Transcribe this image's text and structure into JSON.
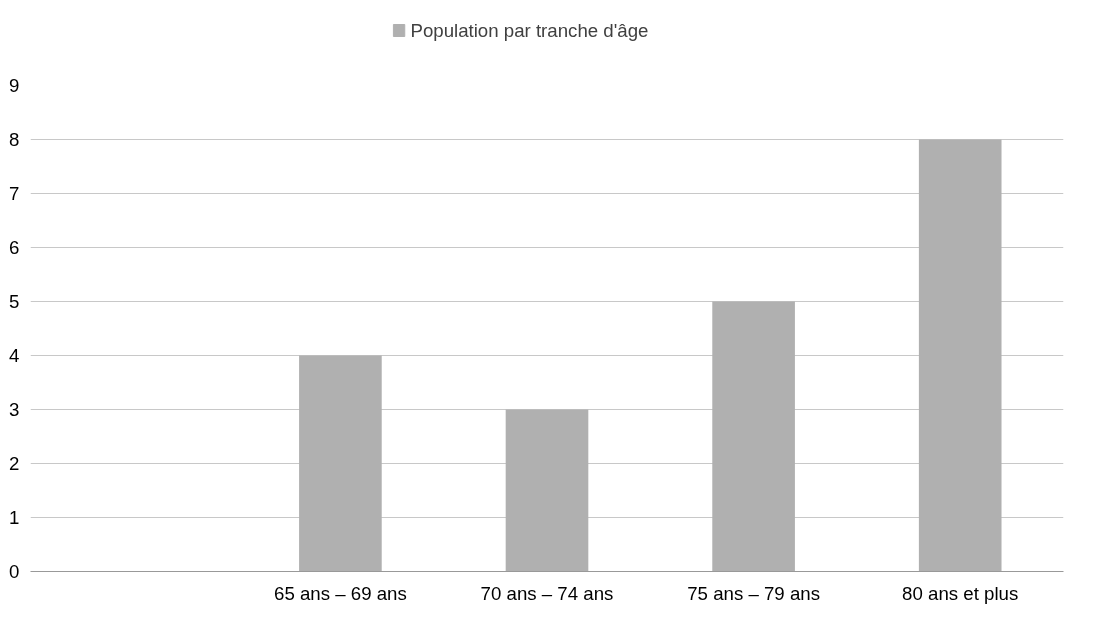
{
  "chart_data": {
    "type": "bar",
    "categories": [
      null,
      "65 ans – 69 ans",
      "70 ans – 74 ans",
      "75 ans – 79 ans",
      "80 ans et plus"
    ],
    "series": [
      {
        "name": "Population par tranche d'âge",
        "color": "#b0b0b0",
        "values": [
          null,
          4,
          3,
          5,
          8
        ]
      }
    ],
    "ylim": [
      0,
      9
    ],
    "yticks": [
      0,
      1,
      2,
      3,
      4,
      5,
      6,
      7,
      8,
      9
    ],
    "grid": "y",
    "legend": "top"
  }
}
